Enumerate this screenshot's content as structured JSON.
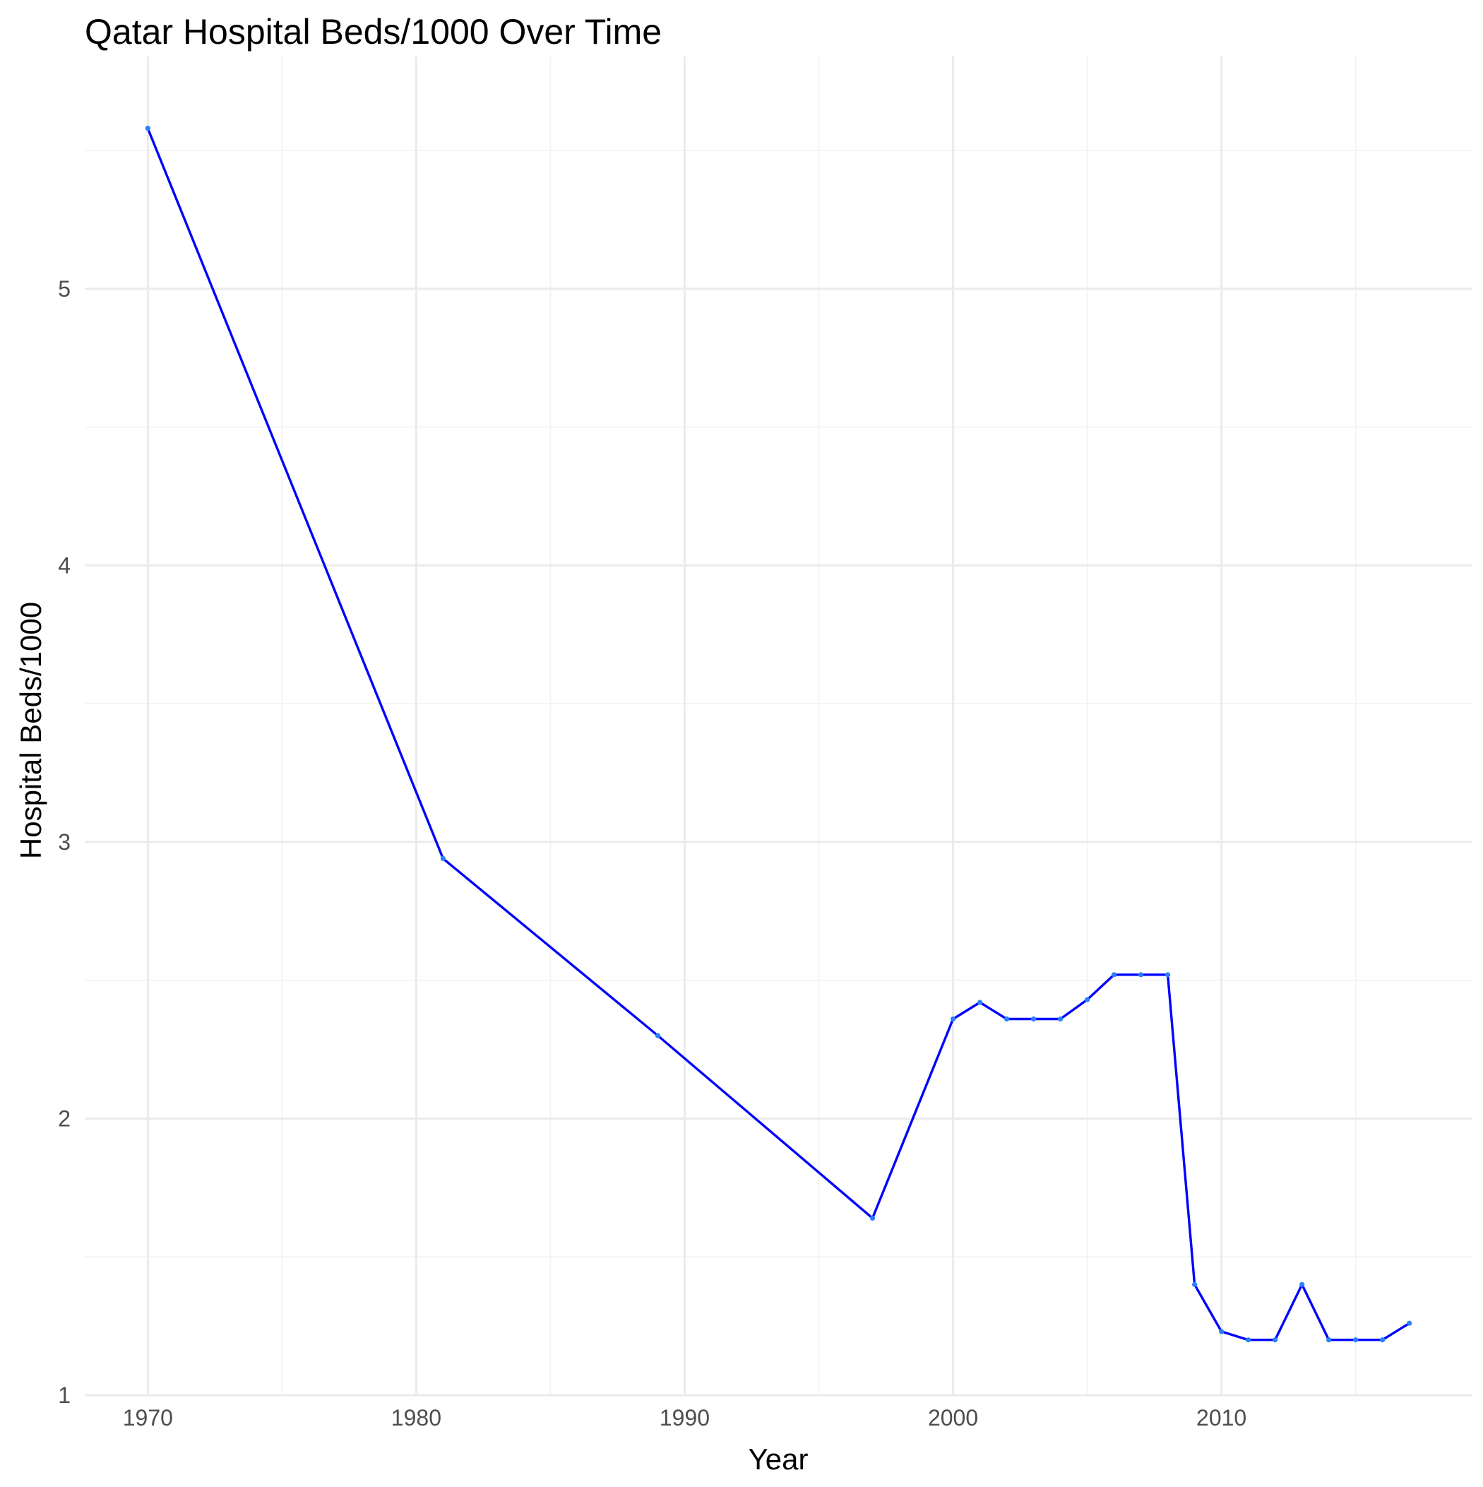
{
  "chart_data": {
    "type": "line",
    "title": "Qatar Hospital Beds/1000 Over Time",
    "xlabel": "Year",
    "ylabel": "Hospital Beds/1000",
    "xlim": [
      1967.65,
      1019.35
    ],
    "xlim_note": "",
    "ylim": [
      1.0,
      5.62
    ],
    "x_ticks": [
      1970,
      1980,
      1990,
      2000,
      2010
    ],
    "x_tick_labels": [
      "1970",
      "1980",
      "1990",
      "2000",
      "2010"
    ],
    "y_ticks": [
      1,
      2,
      3,
      4,
      5
    ],
    "y_tick_labels": [
      "1",
      "2",
      "3",
      "4",
      "5"
    ],
    "grid": true,
    "legend": "none",
    "colors": {
      "line": "#0000ff",
      "point": "#2a7fff",
      "grid_major": "#ebebeb",
      "grid_minor": "#f2f2f2"
    },
    "series": [
      {
        "x": [
          1970,
          1981,
          1989,
          1997,
          2000,
          2001,
          2002,
          2003,
          2004,
          2005,
          2006,
          2007,
          2008,
          2009,
          2010,
          2011,
          2012,
          2013,
          2014,
          2015,
          2016,
          2017
        ],
        "y": [
          5.58,
          2.94,
          2.3,
          1.64,
          2.36,
          2.42,
          2.36,
          2.36,
          2.36,
          2.43,
          2.52,
          2.52,
          2.52,
          1.4,
          1.23,
          1.2,
          1.2,
          1.4,
          1.2,
          1.2,
          1.2,
          1.26
        ]
      }
    ]
  }
}
